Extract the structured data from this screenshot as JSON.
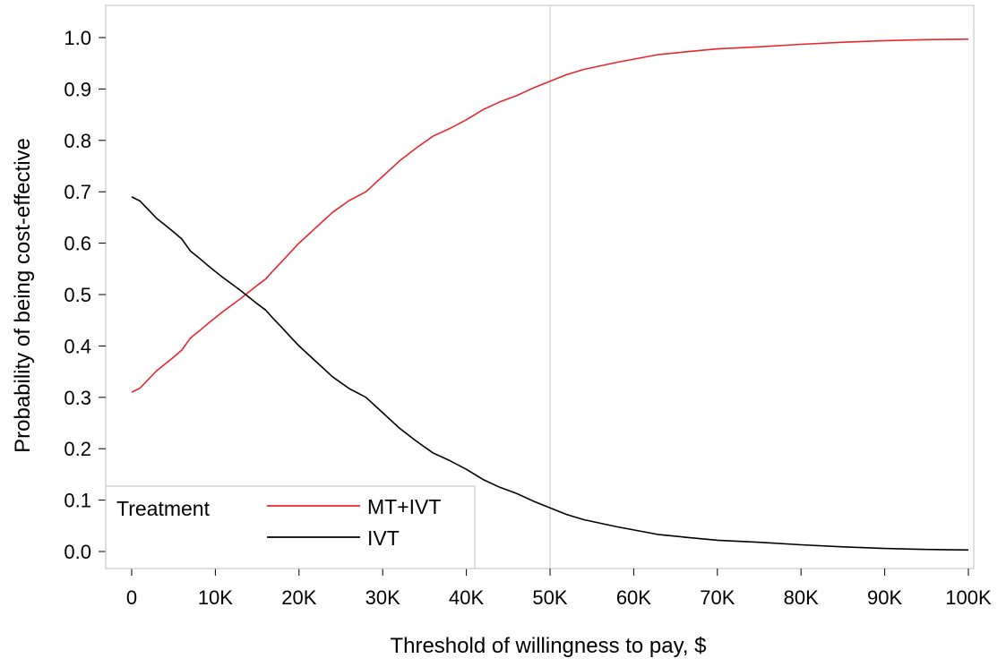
{
  "chart_data": {
    "type": "line",
    "title": "",
    "xlabel": "Threshold of willingness to pay, $",
    "ylabel": "Probability of being cost-effective",
    "xlim": [
      0,
      100000
    ],
    "ylim": [
      0.0,
      1.0
    ],
    "x_ticks": [
      0,
      10000,
      20000,
      30000,
      40000,
      50000,
      60000,
      70000,
      80000,
      90000,
      100000
    ],
    "x_tick_labels": [
      "0",
      "10K",
      "20K",
      "30K",
      "40K",
      "50K",
      "60K",
      "70K",
      "80K",
      "90K",
      "100K"
    ],
    "y_ticks": [
      0.0,
      0.1,
      0.2,
      0.3,
      0.4,
      0.5,
      0.6,
      0.7,
      0.8,
      0.9,
      1.0
    ],
    "y_tick_labels": [
      "0.0",
      "0.1",
      "0.2",
      "0.3",
      "0.4",
      "0.5",
      "0.6",
      "0.7",
      "0.8",
      "0.9",
      "1.0"
    ],
    "reference_line_x": 50000,
    "grid": false,
    "legend": {
      "title": "Treatment",
      "placement": "bottom-left"
    },
    "x": [
      0,
      1000,
      2000,
      3000,
      4000,
      5000,
      6000,
      7000,
      8000,
      9000,
      10000,
      11000,
      12000,
      13000,
      14000,
      15000,
      16000,
      17000,
      18000,
      19000,
      20000,
      22000,
      24000,
      26000,
      28000,
      30000,
      32000,
      34000,
      36000,
      38000,
      40000,
      42000,
      44000,
      46000,
      48000,
      50000,
      52000,
      54000,
      56000,
      58000,
      60000,
      63000,
      66000,
      70000,
      75000,
      80000,
      85000,
      90000,
      95000,
      100000
    ],
    "series": [
      {
        "name": "MT+IVT",
        "color": "#e8262d",
        "values": [
          0.31,
          0.318,
          0.335,
          0.352,
          0.365,
          0.378,
          0.392,
          0.415,
          0.428,
          0.442,
          0.455,
          0.468,
          0.48,
          0.492,
          0.505,
          0.518,
          0.53,
          0.548,
          0.565,
          0.583,
          0.6,
          0.63,
          0.66,
          0.683,
          0.7,
          0.73,
          0.76,
          0.785,
          0.808,
          0.823,
          0.84,
          0.86,
          0.875,
          0.887,
          0.902,
          0.915,
          0.928,
          0.938,
          0.945,
          0.952,
          0.958,
          0.967,
          0.972,
          0.978,
          0.982,
          0.987,
          0.991,
          0.994,
          0.996,
          0.997
        ]
      },
      {
        "name": "IVT",
        "color": "#000000",
        "values": [
          0.69,
          0.682,
          0.665,
          0.648,
          0.635,
          0.622,
          0.608,
          0.585,
          0.572,
          0.558,
          0.545,
          0.532,
          0.52,
          0.508,
          0.495,
          0.482,
          0.47,
          0.452,
          0.435,
          0.417,
          0.4,
          0.37,
          0.34,
          0.317,
          0.3,
          0.27,
          0.24,
          0.215,
          0.192,
          0.177,
          0.16,
          0.14,
          0.125,
          0.113,
          0.098,
          0.085,
          0.072,
          0.062,
          0.055,
          0.048,
          0.042,
          0.033,
          0.028,
          0.022,
          0.018,
          0.013,
          0.009,
          0.006,
          0.004,
          0.003
        ]
      }
    ]
  }
}
